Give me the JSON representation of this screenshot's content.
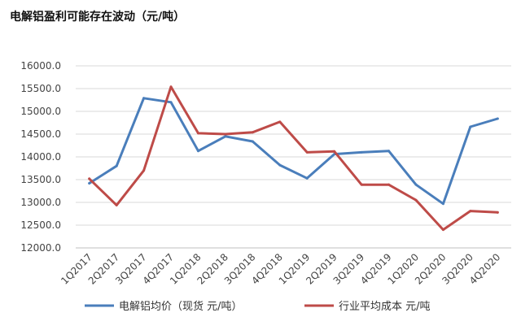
{
  "title": "电解铝盈利可能存在波动（元/吨）",
  "chart_data": {
    "type": "line",
    "categories": [
      "1Q2017",
      "2Q2017",
      "3Q2017",
      "4Q2017",
      "1Q2018",
      "2Q2018",
      "3Q2018",
      "4Q2018",
      "1Q2019",
      "2Q2019",
      "3Q2019",
      "4Q2019",
      "1Q2020",
      "2Q2020",
      "3Q2020",
      "4Q2020"
    ],
    "y_ticks": [
      "16000.0",
      "15500.0",
      "15000.0",
      "14500.0",
      "14000.0",
      "13500.0",
      "13000.0",
      "12500.0",
      "12000.0"
    ],
    "ylim": [
      12000,
      16000
    ],
    "grid": true,
    "legend_position": "bottom",
    "series": [
      {
        "name": "电解铝均价（现货 元/吨）",
        "color": "#4a7ebb",
        "values": [
          13420,
          13800,
          15290,
          15200,
          14130,
          14450,
          14340,
          13820,
          13530,
          14060,
          14100,
          14130,
          13390,
          12970,
          14660,
          14840
        ]
      },
      {
        "name": "行业平均成本 元/吨",
        "color": "#be4b48",
        "values": [
          13520,
          12940,
          13700,
          15540,
          14520,
          14500,
          14540,
          14770,
          14100,
          14120,
          13390,
          13390,
          13050,
          12400,
          12810,
          12780
        ]
      }
    ]
  }
}
